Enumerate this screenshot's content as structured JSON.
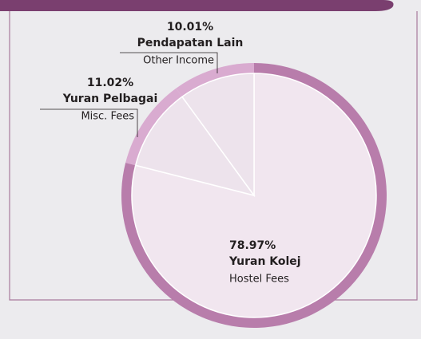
{
  "chart_data": {
    "type": "pie",
    "categories": [
      "Yuran Kolej",
      "Yuran Pelbagai",
      "Pendapatan Lain"
    ],
    "categories_en": [
      "Hostel Fees",
      "Misc. Fees",
      "Other Income"
    ],
    "values": [
      78.97,
      11.02,
      10.01
    ],
    "value_labels": [
      "78.97%",
      "11.02%",
      "10.01%"
    ],
    "colors": [
      "#f1e6ef",
      "#ede3ec",
      "#ede3ec"
    ],
    "ring_colors": [
      "#b87dab",
      "#d9abd0",
      "#d9abd0"
    ]
  }
}
